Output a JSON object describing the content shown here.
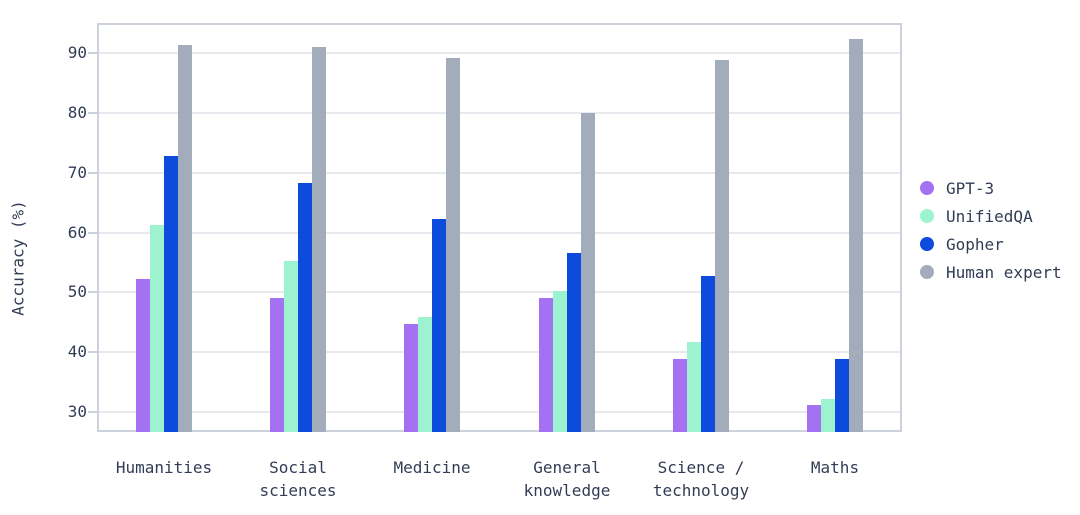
{
  "page": {
    "background": "#ffffff"
  },
  "colors": {
    "axis_text": "#323d55",
    "gridline": "#e7e9ee",
    "plot_border": "#ccd2dc",
    "gpt3": "#a471f2",
    "unifiedqa": "#9df2d0",
    "gopher": "#0c4bdb",
    "human_expert": "#a2acba"
  },
  "chart_data": {
    "type": "bar",
    "title": "",
    "xlabel": "",
    "ylabel": "Accuracy (%)",
    "ylim": [
      26.6,
      95.1
    ],
    "yticks": [
      30,
      40,
      50,
      60,
      70,
      80,
      90
    ],
    "grid": "horizontal-only",
    "legend_position": "right",
    "categories": [
      "Humanities",
      "Social sciences",
      "Medicine",
      "General knowledge",
      "Science / technology",
      "Maths"
    ],
    "series": [
      {
        "name": "GPT-3",
        "color": "#a471f2",
        "values": [
          52.3,
          49.0,
          44.7,
          49.0,
          38.8,
          31.1
        ]
      },
      {
        "name": "UnifiedQA",
        "color": "#9df2d0",
        "values": [
          61.2,
          55.2,
          45.8,
          50.2,
          41.6,
          32.1
        ]
      },
      {
        "name": "Gopher",
        "color": "#0c4bdb",
        "values": [
          72.9,
          68.3,
          62.2,
          56.5,
          52.8,
          38.8
        ]
      },
      {
        "name": "Human expert",
        "color": "#a2acba",
        "values": [
          91.4,
          91.0,
          89.3,
          80.0,
          88.9,
          92.5
        ]
      }
    ]
  }
}
